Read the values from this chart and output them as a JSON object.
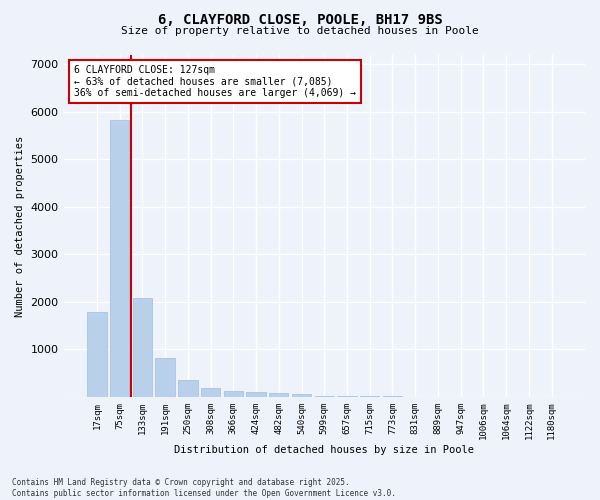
{
  "title": "6, CLAYFORD CLOSE, POOLE, BH17 9BS",
  "subtitle": "Size of property relative to detached houses in Poole",
  "xlabel": "Distribution of detached houses by size in Poole",
  "ylabel": "Number of detached properties",
  "categories": [
    "17sqm",
    "75sqm",
    "133sqm",
    "191sqm",
    "250sqm",
    "308sqm",
    "366sqm",
    "424sqm",
    "482sqm",
    "540sqm",
    "599sqm",
    "657sqm",
    "715sqm",
    "773sqm",
    "831sqm",
    "889sqm",
    "947sqm",
    "1006sqm",
    "1064sqm",
    "1122sqm",
    "1180sqm"
  ],
  "values": [
    1780,
    5840,
    2080,
    820,
    350,
    190,
    120,
    100,
    90,
    60,
    30,
    20,
    15,
    10,
    8,
    5,
    4,
    3,
    2,
    2,
    1
  ],
  "bar_color": "#b8d0ea",
  "bar_edgecolor": "#a0bedd",
  "annotation_box_text": "6 CLAYFORD CLOSE: 127sqm\n← 63% of detached houses are smaller (7,085)\n36% of semi-detached houses are larger (4,069) →",
  "vline_color": "#cc0000",
  "vline_x": 1.5,
  "ylim": [
    0,
    7200
  ],
  "yticks": [
    0,
    1000,
    2000,
    3000,
    4000,
    5000,
    6000,
    7000
  ],
  "background_color": "#eef2fb",
  "grid_color": "#ffffff",
  "footer": "Contains HM Land Registry data © Crown copyright and database right 2025.\nContains public sector information licensed under the Open Government Licence v3.0."
}
